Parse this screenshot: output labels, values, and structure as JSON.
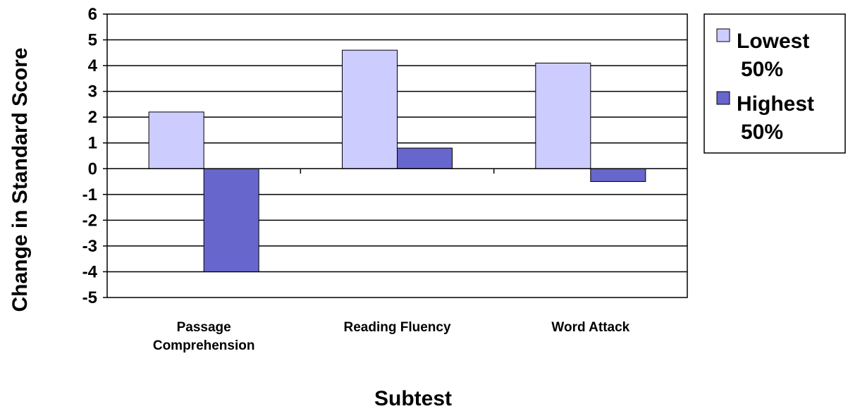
{
  "chart_data": {
    "type": "bar",
    "title": "",
    "xlabel": "Subtest",
    "ylabel": "Change in Standard Score",
    "categories": [
      [
        "Passage",
        "Comprehension"
      ],
      [
        "Reading Fluency"
      ],
      [
        "Word Attack"
      ]
    ],
    "series": [
      {
        "name": [
          "Lowest",
          "50%"
        ],
        "color": "#CCCCFF",
        "values": [
          2.2,
          4.6,
          4.1
        ]
      },
      {
        "name": [
          "Highest",
          "50%"
        ],
        "color": "#6666CC",
        "values": [
          -4.0,
          0.8,
          -0.5
        ]
      }
    ],
    "ylim": [
      -5,
      6
    ],
    "yticks": [
      6,
      5,
      4,
      3,
      2,
      1,
      0,
      -1,
      -2,
      -3,
      -4,
      -5
    ],
    "grid": true,
    "legend_position": "right"
  }
}
